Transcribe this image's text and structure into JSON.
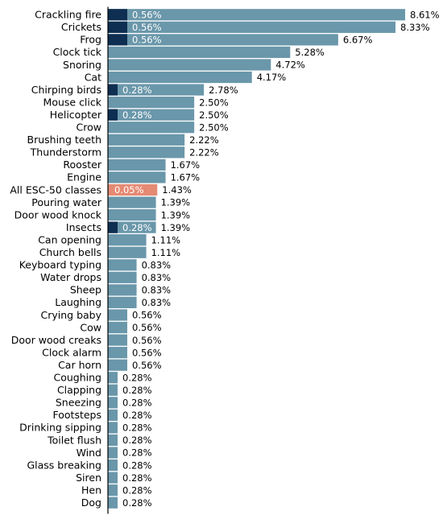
{
  "chart_data": {
    "type": "bar",
    "orientation": "horizontal",
    "title": "",
    "xlabel": "",
    "ylabel": "",
    "xlim": [
      0,
      8.61
    ],
    "grid": false,
    "legend": "none",
    "colors": {
      "main_bar": "#6a97aa",
      "highlight_bar": "#e58a73",
      "overlay_bar": "#0e2f52",
      "axis": "#000000"
    },
    "categories": [
      "Crackling fire",
      "Crickets",
      "Frog",
      "Clock tick",
      "Snoring",
      "Cat",
      "Chirping birds",
      "Mouse click",
      "Helicopter",
      "Crow",
      "Brushing teeth",
      "Thunderstorm",
      "Rooster",
      "Engine",
      "All ESC-50 classes",
      "Pouring water",
      "Door wood knock",
      "Insects",
      "Can opening",
      "Church bells",
      "Keyboard typing",
      "Water drops",
      "Sheep",
      "Laughing",
      "Crying baby",
      "Cow",
      "Door wood creaks",
      "Clock alarm",
      "Car horn",
      "Coughing",
      "Clapping",
      "Sneezing",
      "Footsteps",
      "Drinking sipping",
      "Toilet flush",
      "Wind",
      "Glass breaking",
      "Siren",
      "Hen",
      "Dog"
    ],
    "series": [
      {
        "values": [
          8.61,
          8.33,
          6.67,
          5.28,
          4.72,
          4.17,
          2.78,
          2.5,
          2.5,
          2.5,
          2.22,
          2.22,
          1.67,
          1.67,
          1.43,
          1.39,
          1.39,
          1.39,
          1.11,
          1.11,
          0.83,
          0.83,
          0.83,
          0.83,
          0.56,
          0.56,
          0.56,
          0.56,
          0.56,
          0.28,
          0.28,
          0.28,
          0.28,
          0.28,
          0.28,
          0.28,
          0.28,
          0.28,
          0.28,
          0.28
        ],
        "labels": [
          "8.61%",
          "8.33%",
          "6.67%",
          "5.28%",
          "4.72%",
          "4.17%",
          "2.78%",
          "2.50%",
          "2.50%",
          "2.50%",
          "2.22%",
          "2.22%",
          "1.67%",
          "1.67%",
          "1.43%",
          "1.39%",
          "1.39%",
          "1.39%",
          "1.11%",
          "1.11%",
          "0.83%",
          "0.83%",
          "0.83%",
          "0.83%",
          "0.56%",
          "0.56%",
          "0.56%",
          "0.56%",
          "0.56%",
          "0.28%",
          "0.28%",
          "0.28%",
          "0.28%",
          "0.28%",
          "0.28%",
          "0.28%",
          "0.28%",
          "0.28%",
          "0.28%",
          "0.28%"
        ]
      },
      {
        "values": [
          0.56,
          0.56,
          0.56,
          null,
          null,
          null,
          0.28,
          null,
          0.28,
          null,
          null,
          null,
          null,
          null,
          0.05,
          null,
          null,
          0.28,
          null,
          null,
          null,
          null,
          null,
          null,
          null,
          null,
          null,
          null,
          null,
          null,
          null,
          null,
          null,
          null,
          null,
          null,
          null,
          null,
          null,
          null
        ],
        "labels": [
          "0.56%",
          "0.56%",
          "0.56%",
          "",
          "",
          "",
          "0.28%",
          "",
          "0.28%",
          "",
          "",
          "",
          "",
          "",
          "0.05%",
          "",
          "",
          "0.28%",
          "",
          "",
          "",
          "",
          "",
          "",
          "",
          "",
          "",
          "",
          "",
          "",
          "",
          "",
          "",
          "",
          "",
          "",
          "",
          "",
          "",
          ""
        ]
      }
    ],
    "highlight_category": "All ESC-50 classes"
  }
}
